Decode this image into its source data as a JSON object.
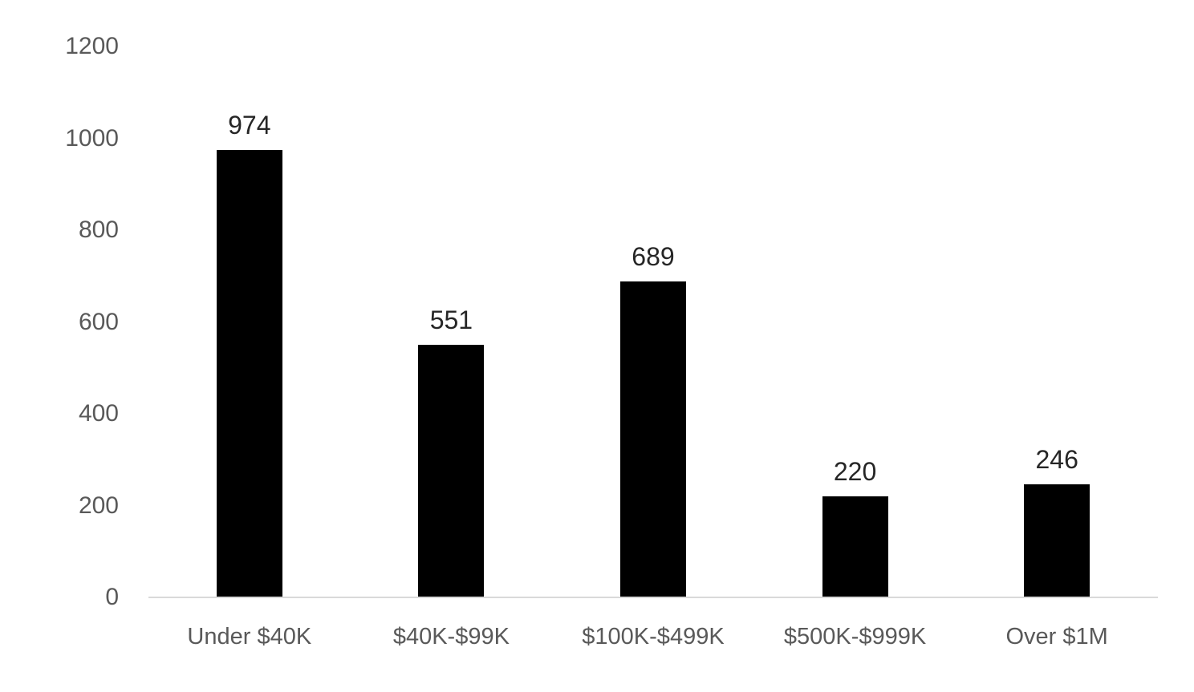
{
  "chart_data": {
    "type": "bar",
    "title": "",
    "xlabel": "",
    "ylabel": "",
    "categories": [
      "Under $40K",
      "$40K-$99K",
      "$100K-$499K",
      "$500K-$999K",
      "Over $1M"
    ],
    "values": [
      974,
      551,
      689,
      220,
      246
    ],
    "data_labels": [
      "974",
      "551",
      "689",
      "220",
      "246"
    ],
    "ylim": [
      0,
      1200
    ],
    "yticks": [
      0,
      200,
      400,
      600,
      800,
      1000,
      1200
    ],
    "grid": false,
    "legend": false,
    "colors": {
      "bar": "#000000",
      "axis_text": "#595959",
      "data_label_text": "#262626",
      "baseline": "#d9d9d9",
      "background": "#ffffff"
    }
  }
}
